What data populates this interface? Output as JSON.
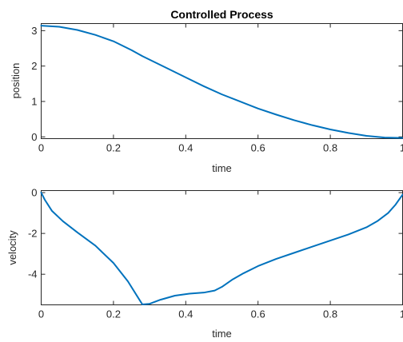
{
  "chart_data": [
    {
      "type": "line",
      "title": "Controlled Process",
      "xlabel": "time",
      "ylabel": "position",
      "xlim": [
        0,
        1
      ],
      "ylim": [
        -0.05,
        3.2
      ],
      "xticks": [
        0,
        0.2,
        0.4,
        0.6,
        0.8,
        1
      ],
      "xtick_labels": [
        "0",
        "0.2",
        "0.4",
        "0.6",
        "0.8",
        "1"
      ],
      "yticks": [
        0,
        1,
        2,
        3
      ],
      "ytick_labels": [
        "0",
        "1",
        "2",
        "3"
      ],
      "grid": false,
      "line_color": "#0072BD",
      "series": [
        {
          "x": [
            0,
            0.05,
            0.1,
            0.15,
            0.2,
            0.25,
            0.28,
            0.35,
            0.4,
            0.45,
            0.5,
            0.55,
            0.6,
            0.65,
            0.7,
            0.75,
            0.8,
            0.85,
            0.9,
            0.95,
            1.0
          ],
          "values": [
            3.14,
            3.11,
            3.02,
            2.88,
            2.7,
            2.45,
            2.28,
            1.93,
            1.68,
            1.43,
            1.2,
            1.0,
            0.8,
            0.63,
            0.47,
            0.33,
            0.21,
            0.11,
            0.03,
            -0.02,
            -0.03
          ]
        }
      ]
    },
    {
      "type": "line",
      "title": "",
      "xlabel": "time",
      "ylabel": "velocity",
      "xlim": [
        0,
        1
      ],
      "ylim": [
        -5.5,
        0.1
      ],
      "xticks": [
        0,
        0.2,
        0.4,
        0.6,
        0.8,
        1
      ],
      "xtick_labels": [
        "0",
        "0.2",
        "0.4",
        "0.6",
        "0.8",
        "1"
      ],
      "yticks": [
        -4,
        -2,
        0
      ],
      "ytick_labels": [
        "-4",
        "-2",
        "0"
      ],
      "grid": false,
      "line_color": "#0072BD",
      "series": [
        {
          "x": [
            0,
            0.01,
            0.03,
            0.06,
            0.1,
            0.15,
            0.2,
            0.24,
            0.27,
            0.28,
            0.3,
            0.33,
            0.37,
            0.41,
            0.45,
            0.48,
            0.5,
            0.53,
            0.56,
            0.6,
            0.65,
            0.7,
            0.75,
            0.8,
            0.85,
            0.9,
            0.93,
            0.96,
            0.98,
            1.0
          ],
          "values": [
            0,
            -0.35,
            -0.9,
            -1.4,
            -1.95,
            -2.6,
            -3.45,
            -4.35,
            -5.2,
            -5.48,
            -5.45,
            -5.25,
            -5.05,
            -4.95,
            -4.9,
            -4.8,
            -4.62,
            -4.25,
            -3.95,
            -3.6,
            -3.25,
            -2.95,
            -2.65,
            -2.35,
            -2.05,
            -1.7,
            -1.4,
            -1.0,
            -0.6,
            -0.1
          ]
        }
      ]
    }
  ]
}
